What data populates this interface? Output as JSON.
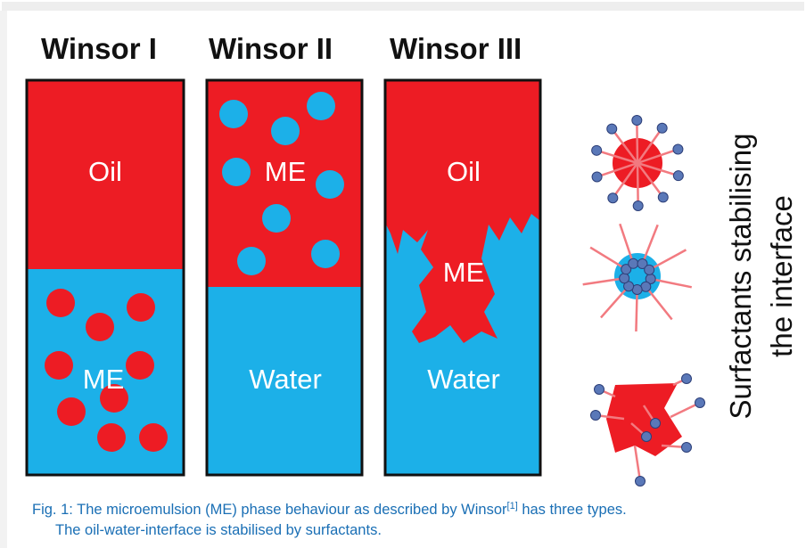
{
  "panels": [
    {
      "title": "Winsor I",
      "labels": [
        "Oil",
        "ME"
      ]
    },
    {
      "title": "Winsor II",
      "labels": [
        "ME",
        "Water"
      ]
    },
    {
      "title": "Winsor III",
      "labels": [
        "Oil",
        "ME",
        "Water"
      ]
    }
  ],
  "side_label": {
    "lines": [
      "Surfactants stabilising",
      "the interface"
    ]
  },
  "caption": {
    "line1": "Fig. 1: The microemulsion (ME) phase behaviour as described by Winsor",
    "reference": "[1]",
    "line1_end": " has three types.",
    "line2": "The oil-water-interface is stabilised by surfactants."
  }
}
